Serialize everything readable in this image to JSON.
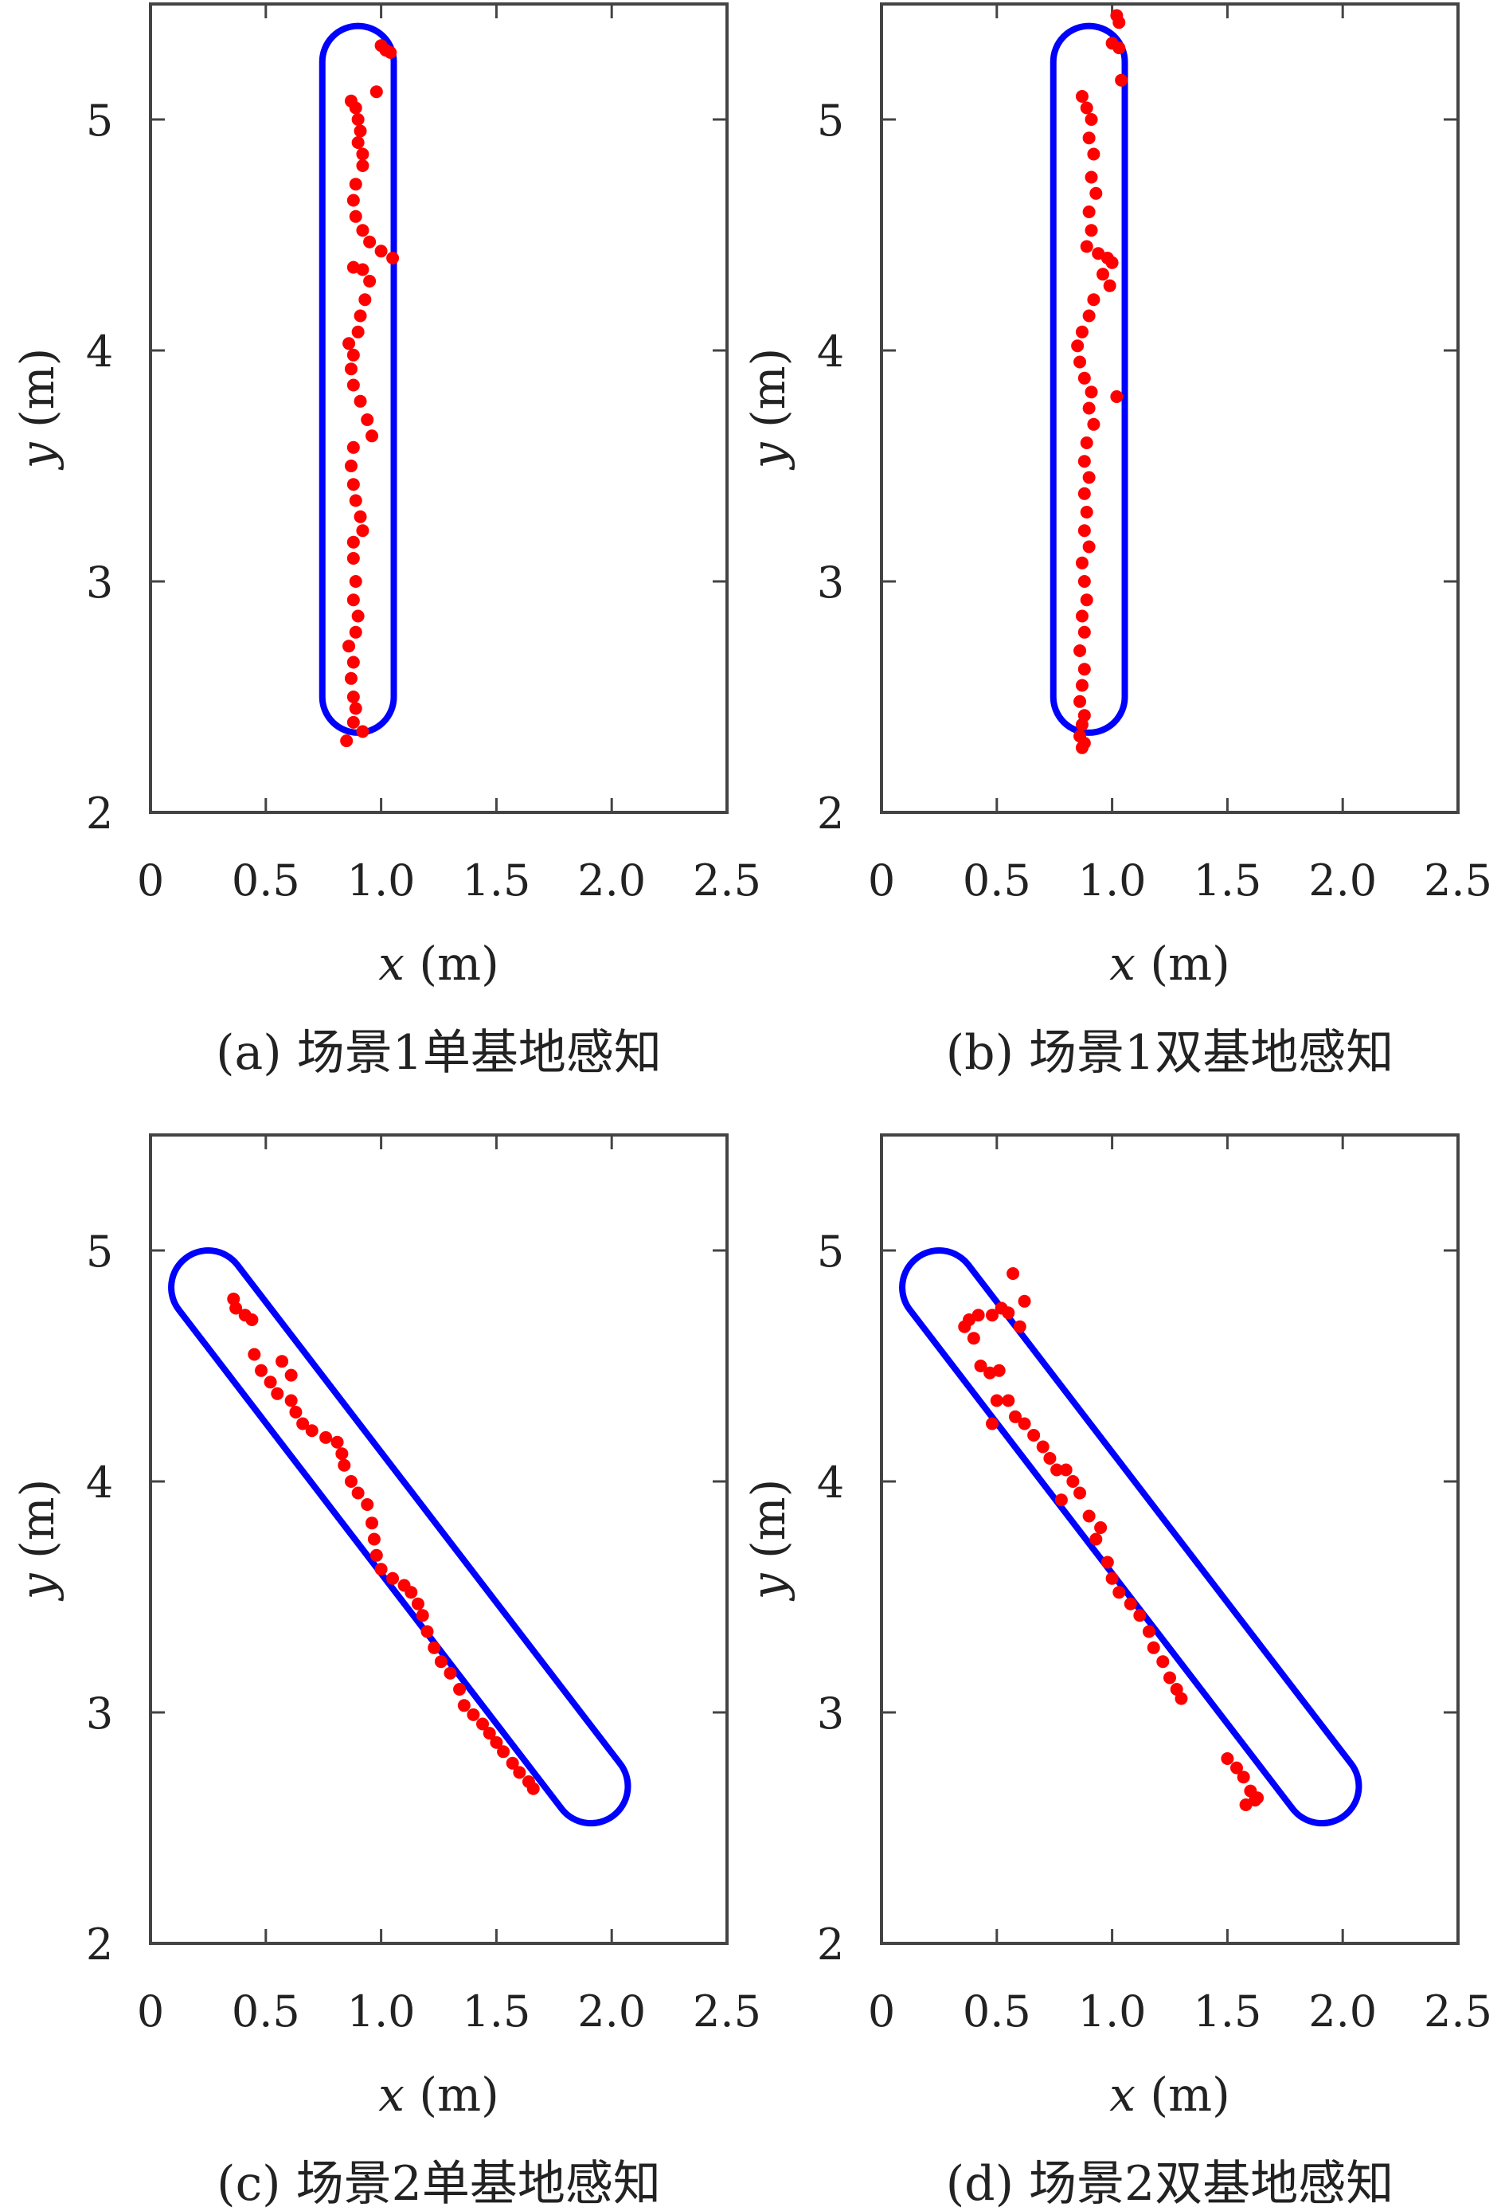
{
  "chart_data": [
    {
      "type": "scatter",
      "caption": "(a) 场景1单基地感知",
      "xlabel_var": "x",
      "xlabel_unit": " (m)",
      "ylabel_var": "y",
      "ylabel_unit": " (m)",
      "xlim": [
        0,
        2.5
      ],
      "ylim": [
        2,
        5.5
      ],
      "xticks": [
        "0",
        "0.5",
        "1.0",
        "1.5",
        "2.0",
        "2.5"
      ],
      "xtick_values": [
        0,
        0.5,
        1.0,
        1.5,
        2.0,
        2.5
      ],
      "yticks": [
        "2",
        "3",
        "4",
        "5"
      ],
      "ytick_values": [
        2,
        3,
        4,
        5
      ],
      "region": {
        "shape": "capsule",
        "p1": [
          0.9,
          5.25
        ],
        "p2": [
          0.9,
          2.5
        ],
        "radius": 0.155,
        "color": "#0000ff"
      },
      "points_color": "#ff0000",
      "points": [
        [
          1.0,
          5.32
        ],
        [
          1.02,
          5.3
        ],
        [
          1.04,
          5.29
        ],
        [
          0.98,
          5.12
        ],
        [
          0.87,
          5.08
        ],
        [
          0.89,
          5.05
        ],
        [
          0.9,
          5.0
        ],
        [
          0.91,
          4.95
        ],
        [
          0.9,
          4.9
        ],
        [
          0.92,
          4.85
        ],
        [
          0.92,
          4.8
        ],
        [
          0.89,
          4.72
        ],
        [
          0.88,
          4.65
        ],
        [
          0.89,
          4.58
        ],
        [
          0.92,
          4.52
        ],
        [
          0.95,
          4.47
        ],
        [
          1.0,
          4.43
        ],
        [
          1.05,
          4.4
        ],
        [
          0.88,
          4.36
        ],
        [
          0.92,
          4.35
        ],
        [
          0.95,
          4.3
        ],
        [
          0.93,
          4.22
        ],
        [
          0.91,
          4.15
        ],
        [
          0.9,
          4.08
        ],
        [
          0.86,
          4.03
        ],
        [
          0.88,
          3.98
        ],
        [
          0.87,
          3.92
        ],
        [
          0.88,
          3.85
        ],
        [
          0.91,
          3.78
        ],
        [
          0.94,
          3.7
        ],
        [
          0.96,
          3.63
        ],
        [
          0.88,
          3.58
        ],
        [
          0.87,
          3.5
        ],
        [
          0.88,
          3.42
        ],
        [
          0.89,
          3.35
        ],
        [
          0.91,
          3.28
        ],
        [
          0.92,
          3.22
        ],
        [
          0.88,
          3.17
        ],
        [
          0.88,
          3.1
        ],
        [
          0.89,
          3.0
        ],
        [
          0.88,
          2.92
        ],
        [
          0.9,
          2.85
        ],
        [
          0.89,
          2.78
        ],
        [
          0.86,
          2.72
        ],
        [
          0.88,
          2.65
        ],
        [
          0.87,
          2.58
        ],
        [
          0.88,
          2.5
        ],
        [
          0.89,
          2.45
        ],
        [
          0.88,
          2.39
        ],
        [
          0.92,
          2.35
        ],
        [
          0.85,
          2.31
        ]
      ]
    },
    {
      "type": "scatter",
      "caption": "(b) 场景1双基地感知",
      "xlabel_var": "x",
      "xlabel_unit": " (m)",
      "ylabel_var": "y",
      "ylabel_unit": " (m)",
      "xlim": [
        0,
        2.5
      ],
      "ylim": [
        2,
        5.5
      ],
      "xticks": [
        "0",
        "0.5",
        "1.0",
        "1.5",
        "2.0",
        "2.5"
      ],
      "xtick_values": [
        0,
        0.5,
        1.0,
        1.5,
        2.0,
        2.5
      ],
      "yticks": [
        "2",
        "3",
        "4",
        "5"
      ],
      "ytick_values": [
        2,
        3,
        4,
        5
      ],
      "region": {
        "shape": "capsule",
        "p1": [
          0.9,
          5.25
        ],
        "p2": [
          0.9,
          2.5
        ],
        "radius": 0.155,
        "color": "#0000ff"
      },
      "points_color": "#ff0000",
      "points": [
        [
          1.02,
          5.45
        ],
        [
          1.03,
          5.42
        ],
        [
          1.0,
          5.33
        ],
        [
          1.03,
          5.31
        ],
        [
          1.04,
          5.17
        ],
        [
          0.87,
          5.1
        ],
        [
          0.89,
          5.05
        ],
        [
          0.91,
          5.0
        ],
        [
          0.9,
          4.92
        ],
        [
          0.92,
          4.85
        ],
        [
          0.91,
          4.75
        ],
        [
          0.93,
          4.68
        ],
        [
          0.9,
          4.6
        ],
        [
          0.91,
          4.52
        ],
        [
          0.89,
          4.45
        ],
        [
          0.94,
          4.42
        ],
        [
          0.98,
          4.4
        ],
        [
          1.0,
          4.38
        ],
        [
          0.96,
          4.33
        ],
        [
          0.99,
          4.28
        ],
        [
          0.92,
          4.22
        ],
        [
          0.9,
          4.15
        ],
        [
          0.87,
          4.08
        ],
        [
          0.85,
          4.02
        ],
        [
          0.86,
          3.95
        ],
        [
          0.88,
          3.88
        ],
        [
          0.91,
          3.82
        ],
        [
          1.02,
          3.8
        ],
        [
          0.9,
          3.75
        ],
        [
          0.92,
          3.68
        ],
        [
          0.89,
          3.6
        ],
        [
          0.88,
          3.52
        ],
        [
          0.9,
          3.45
        ],
        [
          0.88,
          3.38
        ],
        [
          0.89,
          3.3
        ],
        [
          0.88,
          3.22
        ],
        [
          0.9,
          3.15
        ],
        [
          0.87,
          3.08
        ],
        [
          0.88,
          3.0
        ],
        [
          0.89,
          2.92
        ],
        [
          0.87,
          2.85
        ],
        [
          0.88,
          2.78
        ],
        [
          0.86,
          2.7
        ],
        [
          0.88,
          2.62
        ],
        [
          0.87,
          2.55
        ],
        [
          0.86,
          2.48
        ],
        [
          0.88,
          2.42
        ],
        [
          0.87,
          2.38
        ],
        [
          0.86,
          2.33
        ],
        [
          0.88,
          2.3
        ],
        [
          0.87,
          2.28
        ]
      ]
    },
    {
      "type": "scatter",
      "caption": "(c) 场景2单基地感知",
      "xlabel_var": "x",
      "xlabel_unit": " (m)",
      "ylabel_var": "y",
      "ylabel_unit": " (m)",
      "xlim": [
        0,
        2.5
      ],
      "ylim": [
        2,
        5.5
      ],
      "xticks": [
        "0",
        "0.5",
        "1.0",
        "1.5",
        "2.0",
        "2.5"
      ],
      "xtick_values": [
        0,
        0.5,
        1.0,
        1.5,
        2.0,
        2.5
      ],
      "yticks": [
        "2",
        "3",
        "4",
        "5"
      ],
      "ytick_values": [
        2,
        3,
        4,
        5
      ],
      "region": {
        "shape": "capsule",
        "p1": [
          0.25,
          4.84
        ],
        "p2": [
          1.91,
          2.68
        ],
        "radius": 0.16,
        "color": "#0000ff"
      },
      "points_color": "#ff0000",
      "points": [
        [
          0.36,
          4.79
        ],
        [
          0.37,
          4.75
        ],
        [
          0.41,
          4.72
        ],
        [
          0.44,
          4.7
        ],
        [
          0.45,
          4.55
        ],
        [
          0.48,
          4.48
        ],
        [
          0.52,
          4.43
        ],
        [
          0.57,
          4.52
        ],
        [
          0.55,
          4.38
        ],
        [
          0.61,
          4.46
        ],
        [
          0.61,
          4.35
        ],
        [
          0.63,
          4.3
        ],
        [
          0.66,
          4.25
        ],
        [
          0.7,
          4.22
        ],
        [
          0.76,
          4.19
        ],
        [
          0.81,
          4.17
        ],
        [
          0.83,
          4.12
        ],
        [
          0.84,
          4.07
        ],
        [
          0.87,
          4.0
        ],
        [
          0.9,
          3.95
        ],
        [
          0.94,
          3.9
        ],
        [
          0.96,
          3.82
        ],
        [
          0.97,
          3.75
        ],
        [
          0.98,
          3.68
        ],
        [
          1.0,
          3.62
        ],
        [
          1.05,
          3.58
        ],
        [
          1.1,
          3.55
        ],
        [
          1.13,
          3.52
        ],
        [
          1.16,
          3.47
        ],
        [
          1.18,
          3.42
        ],
        [
          1.2,
          3.35
        ],
        [
          1.23,
          3.28
        ],
        [
          1.26,
          3.22
        ],
        [
          1.3,
          3.17
        ],
        [
          1.34,
          3.1
        ],
        [
          1.36,
          3.03
        ],
        [
          1.4,
          2.99
        ],
        [
          1.44,
          2.95
        ],
        [
          1.47,
          2.91
        ],
        [
          1.5,
          2.87
        ],
        [
          1.53,
          2.83
        ],
        [
          1.57,
          2.78
        ],
        [
          1.6,
          2.74
        ],
        [
          1.64,
          2.7
        ],
        [
          1.66,
          2.67
        ]
      ]
    },
    {
      "type": "scatter",
      "caption": "(d) 场景2双基地感知",
      "xlabel_var": "x",
      "xlabel_unit": " (m)",
      "ylabel_var": "y",
      "ylabel_unit": " (m)",
      "xlim": [
        0,
        2.5
      ],
      "ylim": [
        2,
        5.5
      ],
      "xticks": [
        "0",
        "0.5",
        "1.0",
        "1.5",
        "2.0",
        "2.5"
      ],
      "xtick_values": [
        0,
        0.5,
        1.0,
        1.5,
        2.0,
        2.5
      ],
      "yticks": [
        "2",
        "3",
        "4",
        "5"
      ],
      "ytick_values": [
        2,
        3,
        4,
        5
      ],
      "region": {
        "shape": "capsule",
        "p1": [
          0.25,
          4.84
        ],
        "p2": [
          1.91,
          2.68
        ],
        "radius": 0.16,
        "color": "#0000ff"
      },
      "points_color": "#ff0000",
      "points": [
        [
          0.38,
          4.7
        ],
        [
          0.36,
          4.67
        ],
        [
          0.42,
          4.72
        ],
        [
          0.4,
          4.62
        ],
        [
          0.48,
          4.72
        ],
        [
          0.52,
          4.75
        ],
        [
          0.55,
          4.73
        ],
        [
          0.57,
          4.9
        ],
        [
          0.62,
          4.78
        ],
        [
          0.6,
          4.67
        ],
        [
          0.43,
          4.5
        ],
        [
          0.47,
          4.47
        ],
        [
          0.51,
          4.48
        ],
        [
          0.5,
          4.35
        ],
        [
          0.48,
          4.25
        ],
        [
          0.55,
          4.35
        ],
        [
          0.58,
          4.28
        ],
        [
          0.62,
          4.25
        ],
        [
          0.66,
          4.2
        ],
        [
          0.7,
          4.15
        ],
        [
          0.73,
          4.1
        ],
        [
          0.76,
          4.05
        ],
        [
          0.8,
          4.05
        ],
        [
          0.83,
          4.0
        ],
        [
          0.78,
          3.92
        ],
        [
          0.86,
          3.95
        ],
        [
          0.9,
          3.85
        ],
        [
          0.95,
          3.8
        ],
        [
          0.93,
          3.75
        ],
        [
          0.98,
          3.65
        ],
        [
          1.0,
          3.58
        ],
        [
          1.03,
          3.52
        ],
        [
          1.08,
          3.47
        ],
        [
          1.12,
          3.42
        ],
        [
          1.16,
          3.35
        ],
        [
          1.18,
          3.28
        ],
        [
          1.22,
          3.22
        ],
        [
          1.25,
          3.15
        ],
        [
          1.28,
          3.1
        ],
        [
          1.3,
          3.06
        ],
        [
          1.5,
          2.8
        ],
        [
          1.54,
          2.76
        ],
        [
          1.57,
          2.72
        ],
        [
          1.6,
          2.66
        ],
        [
          1.62,
          2.62
        ],
        [
          1.58,
          2.6
        ],
        [
          1.63,
          2.63
        ]
      ]
    }
  ]
}
